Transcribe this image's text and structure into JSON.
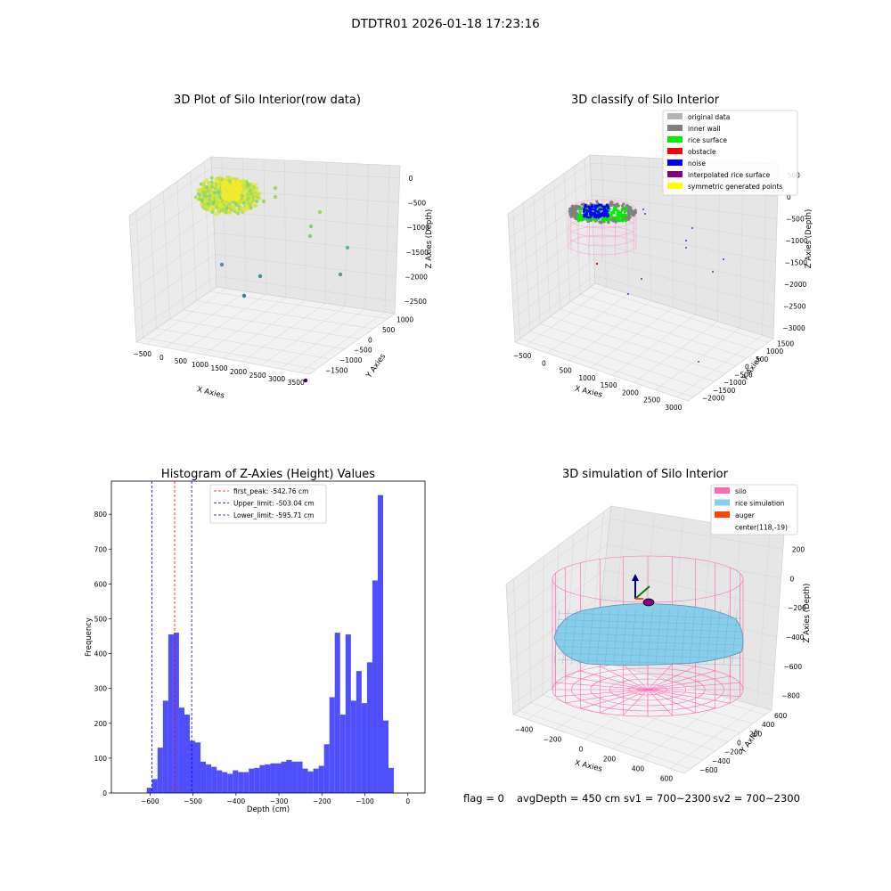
{
  "figure": {
    "suptitle": "DTDTR01 2026-01-18 17:23:16",
    "footer": {
      "flag": "flag = 0",
      "avg_depth": "avgDepth = 450 cm",
      "sv1": "sv1 = 700~2300",
      "sv2": "sv2 = 700~2300"
    }
  },
  "colors": {
    "hist_bar": "#4f4ffb",
    "first_peak": "#ff0000",
    "limit": "#0000ff",
    "silo": "#ff69b4",
    "rice_sim": "#87ceeb",
    "auger": "#ff4500",
    "original": "#b4b4b4",
    "inner_wall": "#808080",
    "rice_surface": "#00ee00",
    "obstacle": "#ff0000",
    "noise": "#0000ff",
    "interp": "#800080",
    "symmetric": "#ffff00"
  },
  "panels": {
    "raw": {
      "title": "3D Plot of Silo Interior(row data)",
      "xlabel": "X Axies",
      "ylabel": "Y Axies",
      "zlabel": "Z Axies (Depth)",
      "xticks": [
        "−500",
        "0",
        "500",
        "1000",
        "1500",
        "2000",
        "2500",
        "3000",
        "3500"
      ],
      "yticks": [
        "1000",
        "500",
        "0",
        "−500",
        "−1000",
        "−1500"
      ],
      "zticks": [
        "0",
        "−500",
        "−1000",
        "−1500",
        "−2000",
        "−2500"
      ]
    },
    "classify": {
      "title": "3D classify of Silo Interior",
      "xlabel": "X Axies",
      "ylabel": "Y Axies",
      "zlabel": "Z Axies (Depth)",
      "xticks": [
        "−500",
        "0",
        "500",
        "1000",
        "1500",
        "2000",
        "2500",
        "3000"
      ],
      "yticks": [
        "1500",
        "1000",
        "500",
        "0",
        "−500",
        "−1000",
        "−1500",
        "−2000"
      ],
      "zticks": [
        "500",
        "0",
        "−500",
        "−1000",
        "−1500",
        "−2000",
        "−2500",
        "−3000"
      ],
      "legend": [
        {
          "label": "original data",
          "color": "#b4b4b4"
        },
        {
          "label": "inner wall",
          "color": "#808080"
        },
        {
          "label": "rice surface",
          "color": "#00ee00"
        },
        {
          "label": "obstacle",
          "color": "#ff0000"
        },
        {
          "label": "noise",
          "color": "#0000ff"
        },
        {
          "label": "interpolated rice surface",
          "color": "#800080"
        },
        {
          "label": "symmetric generated points",
          "color": "#ffff00"
        }
      ]
    },
    "simulation": {
      "title": "3D simulation of Silo Interior",
      "xlabel": "X Axies",
      "ylabel": "Y Axies",
      "zlabel": "Z Axies (Depth)",
      "xticks": [
        "−400",
        "−200",
        "0",
        "200",
        "400",
        "600"
      ],
      "yticks": [
        "600",
        "400",
        "200",
        "0",
        "−200",
        "−400",
        "−600"
      ],
      "zticks": [
        "200",
        "0",
        "−200",
        "−400",
        "−600",
        "−800"
      ],
      "legend": [
        {
          "label": "silo",
          "color": "#ff69b4"
        },
        {
          "label": "rice simulation",
          "color": "#87ceeb"
        },
        {
          "label": "auger",
          "color": "#ff4500"
        },
        {
          "label": "center(118,-19)",
          "color": ""
        }
      ]
    }
  },
  "chart_data": [
    {
      "type": "bar",
      "title": "Histogram of Z-Axies (Height) Values",
      "xlabel": "Depth (cm)",
      "ylabel": "Frequency",
      "xlim": [
        -690,
        40
      ],
      "ylim": [
        0,
        895
      ],
      "xticks": [
        -600,
        -500,
        -400,
        -300,
        -200,
        -100,
        0
      ],
      "yticks": [
        0,
        100,
        200,
        300,
        400,
        500,
        600,
        700,
        800
      ],
      "bin_start": -607.5,
      "bin_width": 12.5,
      "values": [
        15,
        40,
        130,
        265,
        455,
        460,
        245,
        225,
        150,
        145,
        90,
        82,
        75,
        65,
        60,
        55,
        65,
        60,
        60,
        70,
        72,
        80,
        82,
        85,
        85,
        90,
        95,
        90,
        90,
        70,
        62,
        70,
        78,
        140,
        275,
        460,
        225,
        455,
        265,
        350,
        258,
        375,
        610,
        855,
        208,
        72
      ],
      "vlines": [
        {
          "label": "first_peak: -542.76 cm",
          "x": -542.76,
          "color": "#ff0000"
        },
        {
          "label": "Upper_limit: -503.04 cm",
          "x": -503.04,
          "color": "#0000ff"
        },
        {
          "label": "Lower_limit: -595.71 cm",
          "x": -595.71,
          "color": "#0000ff"
        }
      ],
      "legend_loc": "upper center"
    }
  ]
}
